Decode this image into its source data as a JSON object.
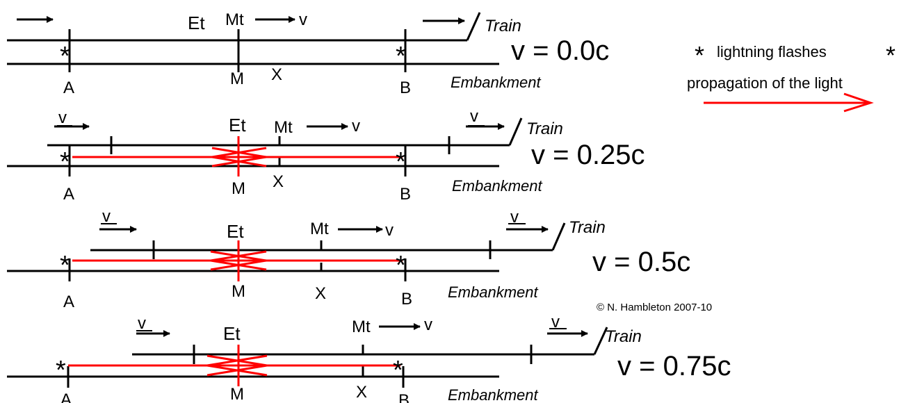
{
  "labels": {
    "train": "Train",
    "embankment": "Embankment",
    "point_a": "A",
    "point_b": "B",
    "point_m": "M",
    "point_x": "X",
    "et": "Et",
    "mt": "Mt",
    "v": "v"
  },
  "panels": [
    {
      "speed_label": "v = 0.0c"
    },
    {
      "speed_label": "v = 0.25c"
    },
    {
      "speed_label": "v = 0.5c"
    },
    {
      "speed_label": "v = 0.75c"
    }
  ],
  "legend": {
    "lightning": "lightning flashes",
    "propagation": "propagation of the light"
  },
  "copyright": "© N. Hambleton 2007-10",
  "colors": {
    "ink": "#000000",
    "light": "#ff0000"
  }
}
